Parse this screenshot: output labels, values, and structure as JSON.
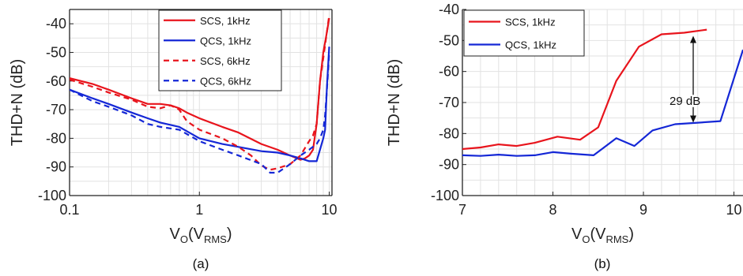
{
  "colors": {
    "red": "#e8141c",
    "blue": "#1427d6",
    "grid": "#e2e2e2",
    "axis": "#222222"
  },
  "chart_data": [
    {
      "type": "line",
      "caption": "(a)",
      "xscale": "log",
      "xlim": [
        0.1,
        10.5
      ],
      "ylim": [
        -100,
        -35
      ],
      "xticks": [
        0.1,
        1,
        10
      ],
      "xtick_labels": [
        "0.1",
        "1",
        "10"
      ],
      "yticks": [
        -40,
        -50,
        -60,
        -70,
        -80,
        -90,
        -100
      ],
      "ylabel": "THD+N (dB)",
      "xlabel": {
        "base": "V",
        "sub1": "O",
        "paren_open": "(V",
        "sub2": "RMS",
        "paren_close": ")"
      },
      "grid": true,
      "legend_position": "top-right",
      "series": [
        {
          "name": "SCS, 1kHz",
          "color": "#e8141c",
          "dash": false,
          "x": [
            0.1,
            0.15,
            0.2,
            0.3,
            0.4,
            0.5,
            0.6,
            0.7,
            0.8,
            1.0,
            1.5,
            2,
            3,
            4,
            5,
            6,
            6.5,
            7,
            7.5,
            8,
            8.5,
            9,
            9.5,
            10
          ],
          "y": [
            -59,
            -61,
            -63,
            -66,
            -68,
            -68,
            -68.5,
            -69.5,
            -71,
            -73,
            -76,
            -78,
            -82,
            -84,
            -86,
            -87.5,
            -87,
            -86,
            -84,
            -75,
            -60,
            -50,
            -44,
            -38
          ]
        },
        {
          "name": "QCS, 1kHz",
          "color": "#1427d6",
          "dash": false,
          "x": [
            0.1,
            0.15,
            0.2,
            0.3,
            0.4,
            0.5,
            0.7,
            1.0,
            1.5,
            2,
            3,
            4,
            5,
            6,
            7,
            8,
            9,
            9.3,
            9.6,
            10
          ],
          "y": [
            -63,
            -66,
            -68,
            -71,
            -73,
            -74.5,
            -76,
            -80,
            -82,
            -83,
            -84.5,
            -85,
            -86,
            -87,
            -88,
            -88,
            -80,
            -77,
            -62,
            -48
          ]
        },
        {
          "name": "SCS, 6kHz",
          "color": "#e8141c",
          "dash": true,
          "x": [
            0.1,
            0.15,
            0.2,
            0.3,
            0.4,
            0.5,
            0.6,
            0.7,
            0.8,
            1.0,
            1.5,
            2,
            2.5,
            3,
            3.5,
            4,
            5,
            6,
            7,
            7.5,
            8,
            8.5,
            9,
            10
          ],
          "y": [
            -59.5,
            -62,
            -64,
            -66.5,
            -69,
            -69.5,
            -68.5,
            -70,
            -74,
            -77,
            -80,
            -83,
            -86,
            -89.5,
            -91,
            -90.5,
            -89,
            -86,
            -81,
            -79,
            -75,
            -60,
            -52,
            -37
          ]
        },
        {
          "name": "QCS, 6kHz",
          "color": "#1427d6",
          "dash": true,
          "x": [
            0.1,
            0.15,
            0.2,
            0.3,
            0.4,
            0.5,
            0.7,
            1.0,
            1.5,
            2,
            3,
            3.5,
            4,
            5,
            6,
            7,
            8,
            8.5,
            9,
            9.3,
            9.7,
            10
          ],
          "y": [
            -63,
            -67,
            -69,
            -72,
            -75,
            -76,
            -77,
            -81,
            -84,
            -86,
            -89,
            -92,
            -92,
            -89,
            -86,
            -84,
            -82,
            -80,
            -77,
            -72,
            -60,
            -50
          ]
        }
      ]
    },
    {
      "type": "line",
      "caption": "(b)",
      "xscale": "linear",
      "xlim": [
        7,
        10.1
      ],
      "ylim": [
        -100,
        -40
      ],
      "xticks": [
        7,
        8,
        9,
        10
      ],
      "xtick_labels": [
        "7",
        "8",
        "9",
        "10"
      ],
      "yticks": [
        -40,
        -50,
        -60,
        -70,
        -80,
        -90,
        -100
      ],
      "ylabel": "THD+N (dB)",
      "xlabel": {
        "base": "V",
        "sub1": "O",
        "paren_open": "(V",
        "sub2": "RMS",
        "paren_close": ")"
      },
      "grid": true,
      "legend_position": "top-left",
      "annotation": {
        "text": "29 dB",
        "x": 9.55,
        "y_top": -48,
        "y_bottom": -77
      },
      "series": [
        {
          "name": "SCS, 1kHz",
          "color": "#e8141c",
          "dash": false,
          "x": [
            7.0,
            7.2,
            7.4,
            7.6,
            7.8,
            8.05,
            8.3,
            8.5,
            8.7,
            8.95,
            9.2,
            9.45,
            9.7
          ],
          "y": [
            -85,
            -84.5,
            -83.5,
            -84,
            -83,
            -81,
            -82,
            -78,
            -63,
            -52,
            -48,
            -47.5,
            -46.5
          ]
        },
        {
          "name": "QCS, 1kHz",
          "color": "#1427d6",
          "dash": false,
          "x": [
            7.0,
            7.2,
            7.4,
            7.6,
            7.8,
            8.0,
            8.2,
            8.45,
            8.7,
            8.9,
            9.1,
            9.35,
            9.6,
            9.85,
            10.1
          ],
          "y": [
            -87,
            -87.2,
            -86.8,
            -87.2,
            -87,
            -86,
            -86.5,
            -87,
            -81.5,
            -84,
            -79,
            -77,
            -76.5,
            -76,
            -53
          ]
        }
      ]
    }
  ]
}
